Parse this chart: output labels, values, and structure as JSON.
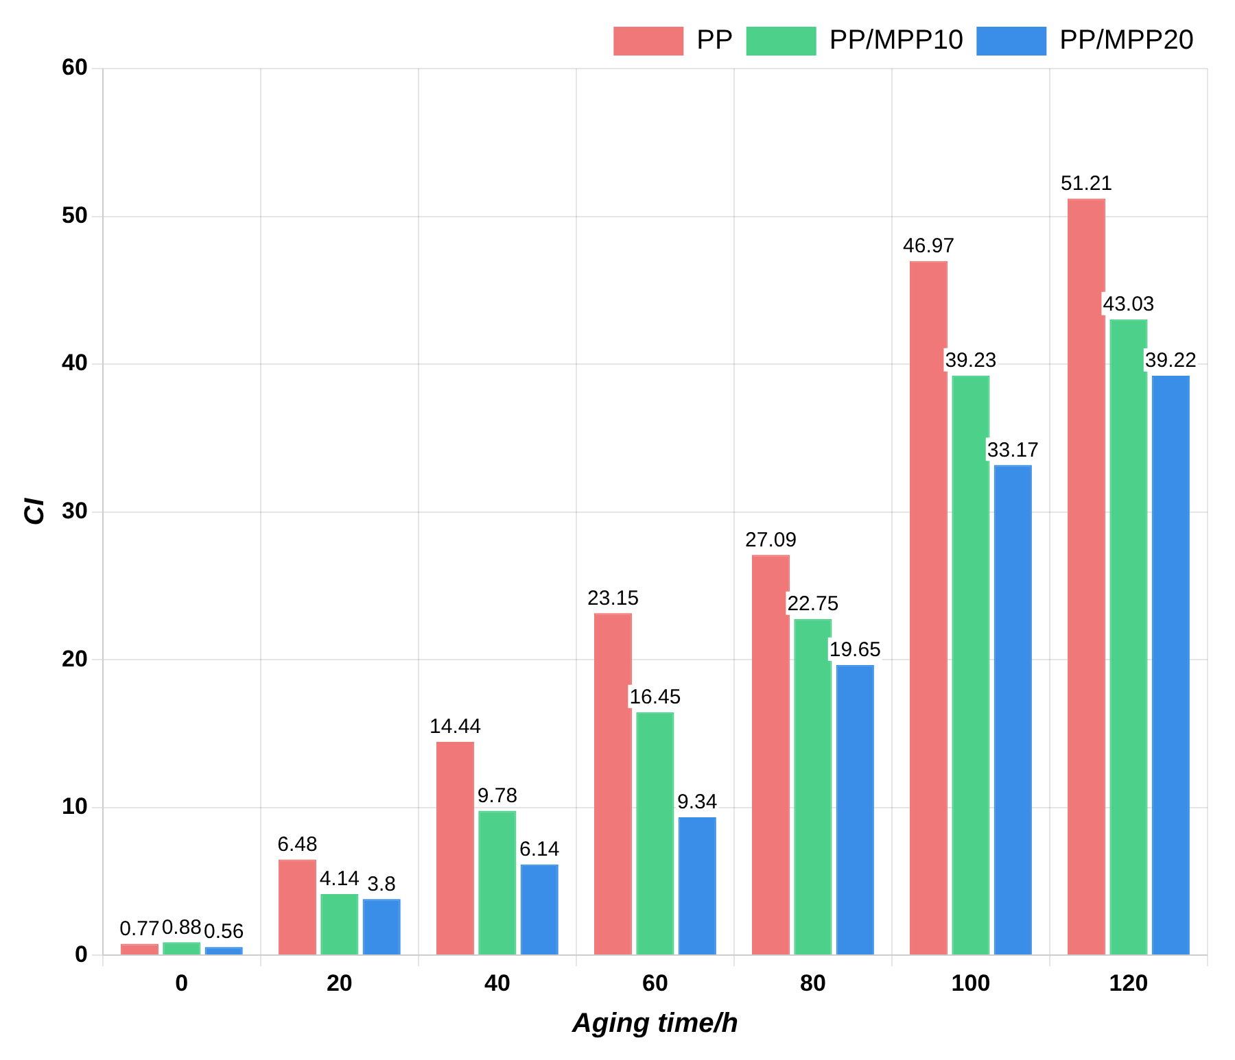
{
  "chart_data": {
    "type": "bar",
    "xlabel": "Aging time/h",
    "ylabel": "CI",
    "categories": [
      "0",
      "20",
      "40",
      "60",
      "80",
      "100",
      "120"
    ],
    "series": [
      {
        "name": "PP",
        "color": "#f07878",
        "values": [
          0.77,
          6.48,
          14.44,
          23.15,
          27.09,
          46.97,
          51.21
        ]
      },
      {
        "name": "PP/MPP10",
        "color": "#4cd08a",
        "values": [
          0.88,
          4.14,
          9.78,
          16.45,
          22.75,
          39.23,
          43.03
        ]
      },
      {
        "name": "PP/MPP20",
        "color": "#3a8ee8",
        "values": [
          0.56,
          3.8,
          6.14,
          9.34,
          19.65,
          33.17,
          39.22
        ]
      }
    ],
    "ylim": [
      0,
      60
    ],
    "yticks": [
      0,
      10,
      20,
      30,
      40,
      50,
      60
    ],
    "grid": true,
    "legend": "top right",
    "data_labels": true
  }
}
